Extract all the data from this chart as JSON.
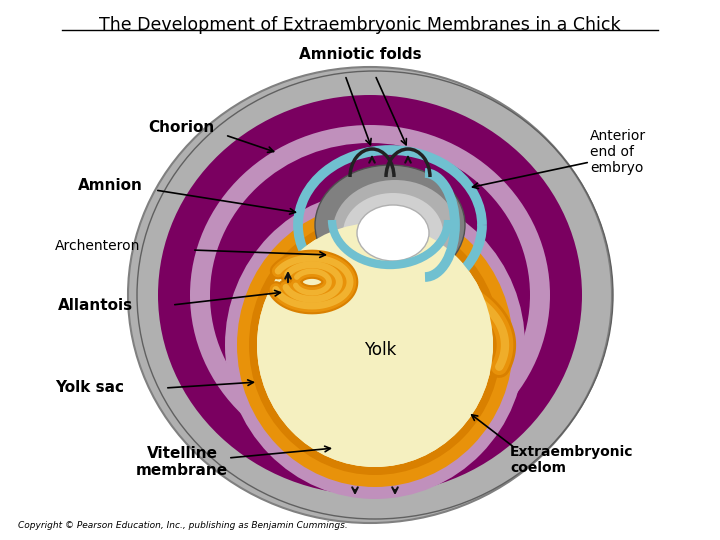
{
  "title": "The Development of Extraembryonic Membranes in a Chick",
  "title_fontsize": 12.5,
  "bg_color": "#ffffff",
  "copyright": "Copyright © Pearson Education, Inc., publishing as Benjamin Cummings.",
  "labels": {
    "amniotic_folds": "Amniotic folds",
    "chorion": "Chorion",
    "amnion": "Amnion",
    "archenteron": "Archenteron",
    "allantois": "Allantois",
    "yolk_sac": "Yolk sac",
    "yolk": "Yolk",
    "vitelline": "Vitelline\nmembrane",
    "anterior_end": "Anterior\nend of\nembryo",
    "extraembryonic": "Extraembryonic\ncoelom"
  },
  "colors": {
    "shell_gray": "#b0b0b0",
    "shell_light": "#d4d4d4",
    "shell_dark": "#808080",
    "chorion_purple": "#7a0060",
    "lavender": "#c090bc",
    "inner_purple": "#7a0060",
    "yolk_cream": "#f5f0c0",
    "yolk_border": "#ede8b0",
    "orange_dark": "#d98000",
    "orange_mid": "#e8920a",
    "orange_light": "#f5c040",
    "amnion_blue": "#70c0d0",
    "gray_dark": "#808080",
    "gray_mid": "#b0b0b0",
    "gray_light": "#d0d0d0",
    "white": "#ffffff"
  }
}
